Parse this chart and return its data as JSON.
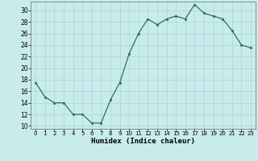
{
  "x": [
    0,
    1,
    2,
    3,
    4,
    5,
    6,
    7,
    8,
    9,
    10,
    11,
    12,
    13,
    14,
    15,
    16,
    17,
    18,
    19,
    20,
    21,
    22,
    23
  ],
  "y": [
    17.5,
    15,
    14,
    14,
    12,
    12,
    10.5,
    10.5,
    14.5,
    17.5,
    22.5,
    26,
    28.5,
    27.5,
    28.5,
    29,
    28.5,
    31,
    29.5,
    29,
    28.5,
    26.5,
    24,
    23.5
  ],
  "line_color": "#2d6e5e",
  "marker_color": "#2d6e5e",
  "bg_color": "#c8ecec",
  "grid_color": "#aad4d4",
  "xlabel": "Humidex (Indice chaleur)",
  "xlim": [
    -0.5,
    23.5
  ],
  "ylim": [
    9.5,
    31.5
  ],
  "yticks": [
    10,
    12,
    14,
    16,
    18,
    20,
    22,
    24,
    26,
    28,
    30
  ],
  "xticks": [
    0,
    1,
    2,
    3,
    4,
    5,
    6,
    7,
    8,
    9,
    10,
    11,
    12,
    13,
    14,
    15,
    16,
    17,
    18,
    19,
    20,
    21,
    22,
    23
  ]
}
